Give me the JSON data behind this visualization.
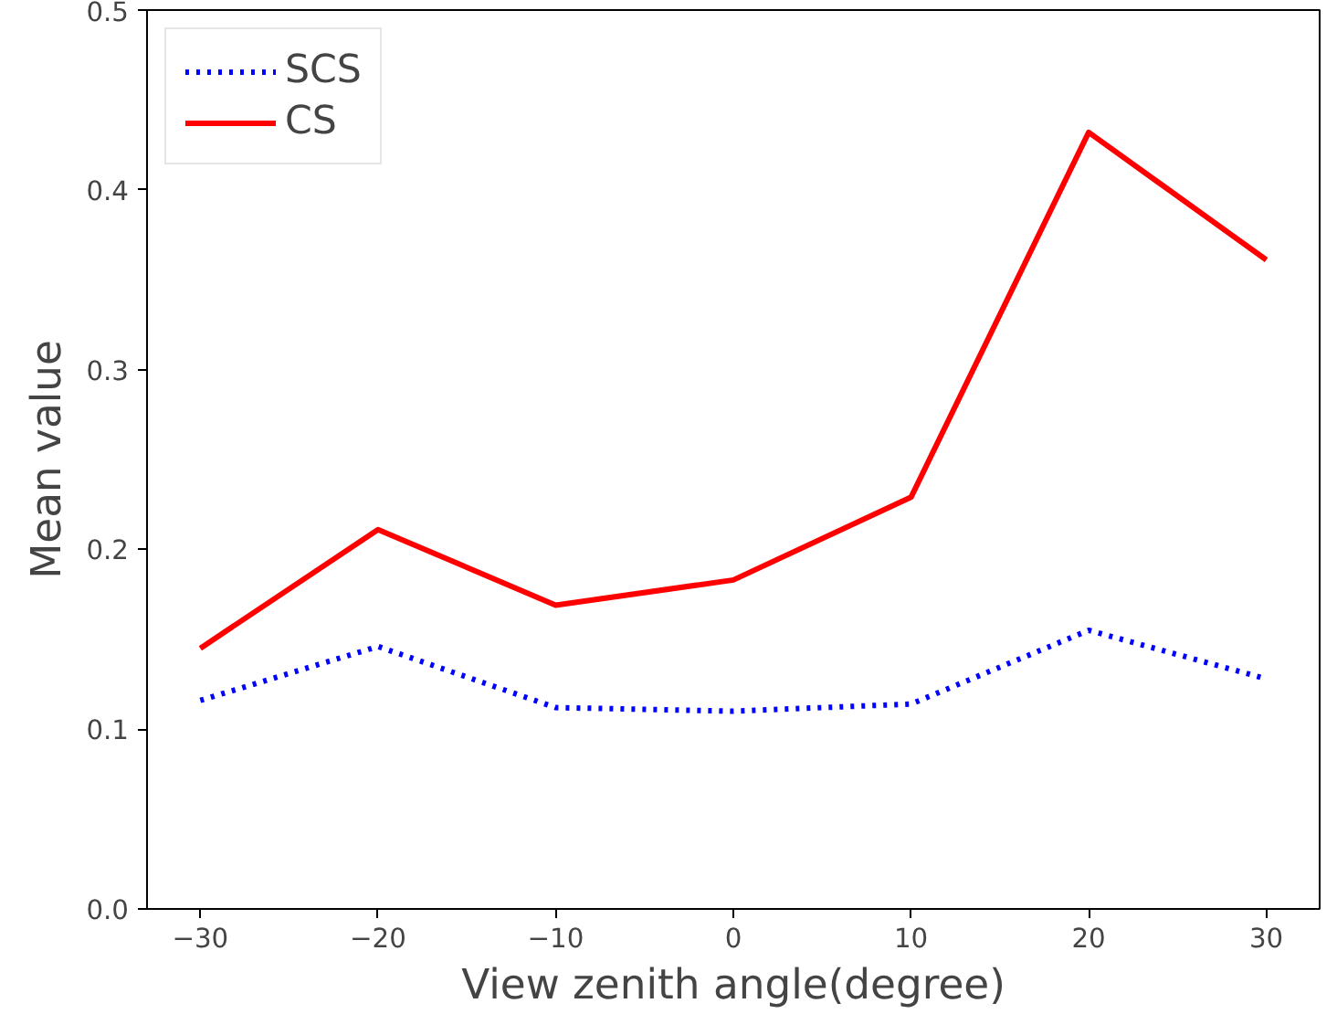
{
  "chart_data": {
    "type": "line",
    "xlabel": "View zenith angle(degree)",
    "ylabel": "Mean value",
    "x": [
      -30,
      -20,
      -10,
      0,
      10,
      20,
      30
    ],
    "series": [
      {
        "name": "SCS",
        "color": "#0000ff",
        "line_style": "dotted",
        "values": [
          0.116,
          0.146,
          0.112,
          0.11,
          0.114,
          0.155,
          0.128
        ]
      },
      {
        "name": "CS",
        "color": "#ff0000",
        "line_style": "solid",
        "values": [
          0.145,
          0.211,
          0.169,
          0.183,
          0.229,
          0.432,
          0.361
        ]
      }
    ],
    "xlim": [
      -33,
      33
    ],
    "ylim": [
      0,
      0.5
    ],
    "xticks": [
      {
        "value": -30,
        "label": "−30"
      },
      {
        "value": -20,
        "label": "−20"
      },
      {
        "value": -10,
        "label": "−10"
      },
      0,
      10,
      20,
      30
    ],
    "yticks": [
      {
        "value": 0,
        "label": "0.0"
      },
      0.1,
      0.2,
      0.3,
      0.4,
      0.5
    ],
    "grid": false,
    "legend": "top left"
  }
}
